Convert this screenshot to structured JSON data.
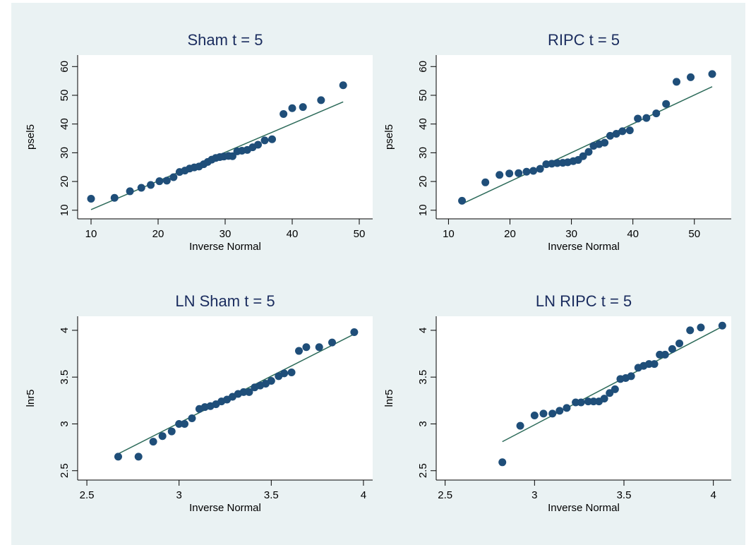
{
  "colors": {
    "background": "#eaf2f3",
    "marker": "#1f4e79",
    "fit_line": "#2d6b5a",
    "title": "#1a2c5e"
  },
  "chart_data": [
    {
      "type": "scatter",
      "title": "Sham t = 5",
      "xlabel": "Inverse Normal",
      "ylabel": "psel5",
      "xlim": [
        8,
        52
      ],
      "ylim": [
        7,
        64
      ],
      "xticks": [
        10,
        20,
        30,
        40,
        50
      ],
      "yticks": [
        10,
        20,
        30,
        40,
        50,
        60
      ],
      "points": [
        [
          10.0,
          14.0
        ],
        [
          13.5,
          14.3
        ],
        [
          15.8,
          16.6
        ],
        [
          17.5,
          17.8
        ],
        [
          18.9,
          18.8
        ],
        [
          20.2,
          20.1
        ],
        [
          21.3,
          20.3
        ],
        [
          22.3,
          21.5
        ],
        [
          23.2,
          23.3
        ],
        [
          24.0,
          23.8
        ],
        [
          24.7,
          24.5
        ],
        [
          25.4,
          24.9
        ],
        [
          26.1,
          25.2
        ],
        [
          26.8,
          26.0
        ],
        [
          27.4,
          26.8
        ],
        [
          28.0,
          27.6
        ],
        [
          28.6,
          28.2
        ],
        [
          29.2,
          28.5
        ],
        [
          29.8,
          28.7
        ],
        [
          30.5,
          28.9
        ],
        [
          31.1,
          28.8
        ],
        [
          31.8,
          30.5
        ],
        [
          32.5,
          30.7
        ],
        [
          33.3,
          31.0
        ],
        [
          34.1,
          31.9
        ],
        [
          34.9,
          32.8
        ],
        [
          35.9,
          34.3
        ],
        [
          37.0,
          34.7
        ],
        [
          38.7,
          43.5
        ],
        [
          40.0,
          45.5
        ],
        [
          41.6,
          45.9
        ],
        [
          44.3,
          48.3
        ],
        [
          47.6,
          53.5
        ]
      ],
      "fit": [
        [
          10.0,
          10.2
        ],
        [
          47.6,
          47.7
        ]
      ]
    },
    {
      "type": "scatter",
      "title": "RIPC t = 5",
      "xlabel": "Inverse Normal",
      "ylabel": "psel5",
      "xlim": [
        8,
        56
      ],
      "ylim": [
        7,
        64
      ],
      "xticks": [
        10,
        20,
        30,
        40,
        50
      ],
      "yticks": [
        10,
        20,
        30,
        40,
        50,
        60
      ],
      "points": [
        [
          12.2,
          13.3
        ],
        [
          16.0,
          19.7
        ],
        [
          18.3,
          22.3
        ],
        [
          19.9,
          22.8
        ],
        [
          21.4,
          22.9
        ],
        [
          22.7,
          23.4
        ],
        [
          23.8,
          23.7
        ],
        [
          24.9,
          24.4
        ],
        [
          25.9,
          26.0
        ],
        [
          26.8,
          26.2
        ],
        [
          27.7,
          26.4
        ],
        [
          28.6,
          26.5
        ],
        [
          29.4,
          26.7
        ],
        [
          30.3,
          27.1
        ],
        [
          31.1,
          27.5
        ],
        [
          31.9,
          28.8
        ],
        [
          32.8,
          30.3
        ],
        [
          33.6,
          32.4
        ],
        [
          34.5,
          33.0
        ],
        [
          35.4,
          33.5
        ],
        [
          36.3,
          35.9
        ],
        [
          37.3,
          36.6
        ],
        [
          38.3,
          37.5
        ],
        [
          39.5,
          37.8
        ],
        [
          40.8,
          41.9
        ],
        [
          42.2,
          42.1
        ],
        [
          43.8,
          43.7
        ],
        [
          45.4,
          47.0
        ],
        [
          47.1,
          54.7
        ],
        [
          49.4,
          56.3
        ],
        [
          52.9,
          57.4
        ]
      ],
      "fit": [
        [
          12.2,
          12.2
        ],
        [
          52.9,
          53.0
        ]
      ]
    },
    {
      "type": "scatter",
      "title": "LN Sham t = 5",
      "xlabel": "Inverse Normal",
      "ylabel": "lnr5",
      "xlim": [
        2.45,
        4.05
      ],
      "ylim": [
        2.4,
        4.15
      ],
      "xticks": [
        2.5,
        3,
        3.5,
        4
      ],
      "yticks": [
        2.5,
        3,
        3.5,
        4
      ],
      "points": [
        [
          2.67,
          2.65
        ],
        [
          2.78,
          2.65
        ],
        [
          2.86,
          2.81
        ],
        [
          2.91,
          2.87
        ],
        [
          2.96,
          2.92
        ],
        [
          3.0,
          3.0
        ],
        [
          3.03,
          3.0
        ],
        [
          3.07,
          3.06
        ],
        [
          3.11,
          3.16
        ],
        [
          3.14,
          3.18
        ],
        [
          3.17,
          3.19
        ],
        [
          3.2,
          3.21
        ],
        [
          3.23,
          3.24
        ],
        [
          3.26,
          3.26
        ],
        [
          3.29,
          3.29
        ],
        [
          3.32,
          3.32
        ],
        [
          3.35,
          3.34
        ],
        [
          3.38,
          3.34
        ],
        [
          3.41,
          3.39
        ],
        [
          3.44,
          3.41
        ],
        [
          3.47,
          3.43
        ],
        [
          3.5,
          3.46
        ],
        [
          3.54,
          3.51
        ],
        [
          3.57,
          3.54
        ],
        [
          3.61,
          3.55
        ],
        [
          3.65,
          3.78
        ],
        [
          3.69,
          3.82
        ],
        [
          3.76,
          3.82
        ],
        [
          3.83,
          3.87
        ],
        [
          3.95,
          3.98
        ]
      ],
      "fit": [
        [
          2.67,
          2.68
        ],
        [
          3.95,
          3.96
        ]
      ]
    },
    {
      "type": "scatter",
      "title": "LN RIPC t = 5",
      "xlabel": "Inverse Normal",
      "ylabel": "lnr5",
      "xlim": [
        2.45,
        4.1
      ],
      "ylim": [
        2.4,
        4.15
      ],
      "xticks": [
        2.5,
        3,
        3.5,
        4
      ],
      "yticks": [
        2.5,
        3,
        3.5,
        4
      ],
      "points": [
        [
          2.82,
          2.59
        ],
        [
          2.92,
          2.98
        ],
        [
          3.0,
          3.09
        ],
        [
          3.05,
          3.11
        ],
        [
          3.1,
          3.11
        ],
        [
          3.14,
          3.14
        ],
        [
          3.18,
          3.17
        ],
        [
          3.23,
          3.23
        ],
        [
          3.26,
          3.23
        ],
        [
          3.3,
          3.24
        ],
        [
          3.33,
          3.24
        ],
        [
          3.36,
          3.24
        ],
        [
          3.39,
          3.27
        ],
        [
          3.42,
          3.33
        ],
        [
          3.45,
          3.37
        ],
        [
          3.48,
          3.48
        ],
        [
          3.51,
          3.49
        ],
        [
          3.54,
          3.51
        ],
        [
          3.58,
          3.6
        ],
        [
          3.61,
          3.62
        ],
        [
          3.64,
          3.64
        ],
        [
          3.67,
          3.64
        ],
        [
          3.7,
          3.74
        ],
        [
          3.73,
          3.74
        ],
        [
          3.77,
          3.8
        ],
        [
          3.81,
          3.86
        ],
        [
          3.87,
          4.0
        ],
        [
          3.93,
          4.03
        ],
        [
          4.05,
          4.05
        ]
      ],
      "fit": [
        [
          2.82,
          2.81
        ],
        [
          4.05,
          4.04
        ]
      ]
    }
  ]
}
